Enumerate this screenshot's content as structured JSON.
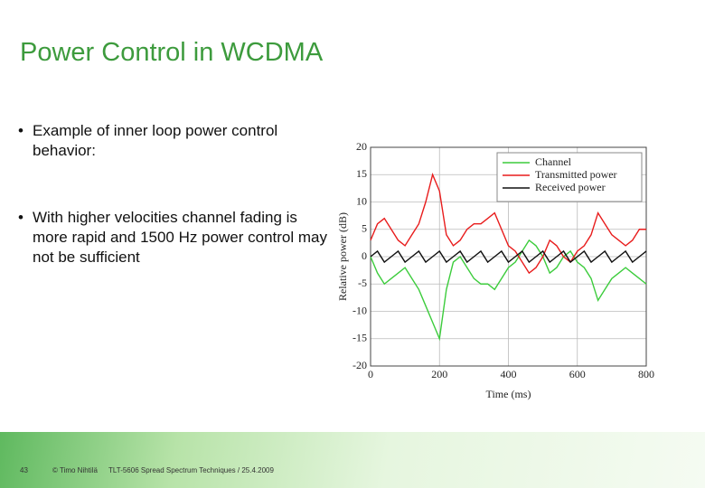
{
  "title": "Power Control in WCDMA",
  "bullets": [
    "Example of inner loop power control behavior:",
    "With higher velocities channel fading is more rapid and 1500 Hz power control may not be sufficient"
  ],
  "footer": {
    "page": "43",
    "author": "© Timo Nihtilä",
    "course": "TLT-5606 Spread Spectrum Techniques / 25.4.2009"
  },
  "chart_data": {
    "type": "line",
    "xlabel": "Time (ms)",
    "ylabel": "Relative power (dB)",
    "x": [
      0,
      20,
      40,
      60,
      80,
      100,
      120,
      140,
      160,
      180,
      200,
      220,
      240,
      260,
      280,
      300,
      320,
      340,
      360,
      380,
      400,
      420,
      440,
      460,
      480,
      500,
      520,
      540,
      560,
      580,
      600,
      620,
      640,
      660,
      680,
      700,
      720,
      740,
      760,
      780,
      800
    ],
    "series": [
      {
        "name": "Channel",
        "color": "#3ccc3c",
        "values": [
          0,
          -3,
          -5,
          -4,
          -3,
          -2,
          -4,
          -6,
          -9,
          -12,
          -15,
          -6,
          -1,
          0,
          -2,
          -4,
          -5,
          -5,
          -6,
          -4,
          -2,
          -1,
          1,
          3,
          2,
          0,
          -3,
          -2,
          0,
          1,
          -1,
          -2,
          -4,
          -8,
          -6,
          -4,
          -3,
          -2,
          -3,
          -4,
          -5
        ]
      },
      {
        "name": "Transmitted power",
        "color": "#e81c1c",
        "values": [
          3,
          6,
          7,
          5,
          3,
          2,
          4,
          6,
          10,
          15,
          12,
          4,
          2,
          3,
          5,
          6,
          6,
          7,
          8,
          5,
          2,
          1,
          -1,
          -3,
          -2,
          0,
          3,
          2,
          0,
          -1,
          1,
          2,
          4,
          8,
          6,
          4,
          3,
          2,
          3,
          5,
          5
        ]
      },
      {
        "name": "Received power",
        "color": "#111111",
        "values": [
          0,
          1,
          -1,
          0,
          1,
          -1,
          0,
          1,
          -1,
          0,
          1,
          -1,
          0,
          1,
          -1,
          0,
          1,
          -1,
          0,
          1,
          -1,
          0,
          1,
          -1,
          0,
          1,
          -1,
          0,
          1,
          -1,
          0,
          1,
          -1,
          0,
          1,
          -1,
          0,
          1,
          -1,
          0,
          1
        ]
      }
    ],
    "xlim": [
      0,
      800
    ],
    "xticks": [
      0,
      200,
      400,
      600,
      800
    ],
    "ylim": [
      -20,
      20
    ],
    "yticks": [
      -20,
      -15,
      -10,
      -5,
      0,
      5,
      10,
      15,
      20
    ],
    "grid": true,
    "legend": "upper right"
  }
}
